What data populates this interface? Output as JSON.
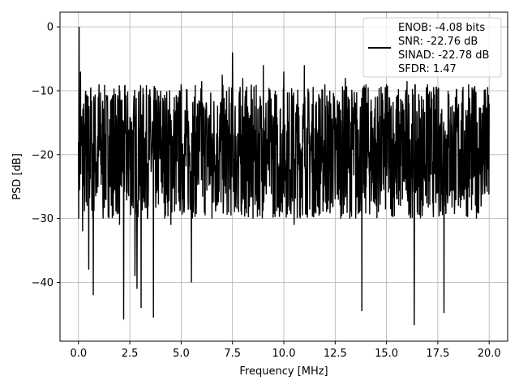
{
  "chart_data": {
    "type": "line",
    "title": "",
    "xlabel": "Frequency [MHz]",
    "ylabel": "PSD [dB]",
    "xlim": [
      -0.9,
      20.9
    ],
    "ylim": [
      -49.2,
      2.3
    ],
    "xticks": [
      0.0,
      2.5,
      5.0,
      7.5,
      10.0,
      12.5,
      15.0,
      17.5,
      20.0
    ],
    "xtick_labels": [
      "0.0",
      "2.5",
      "5.0",
      "7.5",
      "10.0",
      "12.5",
      "15.0",
      "17.5",
      "20.0"
    ],
    "yticks": [
      0,
      -10,
      -20,
      -30,
      -40
    ],
    "ytick_labels": [
      "0",
      "−10",
      "−20",
      "−30",
      "−40"
    ],
    "grid": true,
    "legend_position": "top-right",
    "series": [
      {
        "line_color": "#000000",
        "description": "dense noise-floor PSD spanning 0 to 20 MHz",
        "noise_floor_range_db": [
          -30,
          -9
        ],
        "x": [
          0.0,
          0.03,
          0.06,
          0.1,
          0.15,
          0.2,
          0.25,
          0.3,
          0.35,
          0.42,
          0.5,
          0.6,
          0.7,
          0.72,
          0.8,
          0.9,
          1.0,
          1.2,
          1.4,
          1.6,
          1.8,
          2.0,
          2.2,
          2.3,
          2.6,
          2.75,
          2.85,
          3.0,
          3.05,
          3.2,
          3.5,
          3.65,
          3.8,
          4.0,
          4.5,
          5.0,
          5.5,
          5.6,
          6.0,
          6.5,
          7.0,
          7.5,
          7.8,
          8.0,
          8.5,
          9.0,
          9.5,
          10.0,
          10.5,
          11.0,
          11.5,
          12.0,
          12.5,
          13.0,
          13.5,
          13.8,
          14.0,
          14.5,
          15.0,
          15.5,
          16.0,
          16.35,
          16.5,
          17.0,
          17.5,
          17.8,
          18.0,
          18.5,
          19.0,
          19.5,
          20.0
        ],
        "y": [
          -18.0,
          0.0,
          -22.0,
          -7.0,
          -14.0,
          -32.0,
          -12.0,
          -26.0,
          -10.0,
          -28.0,
          -38.0,
          -9.5,
          -30.0,
          -42.0,
          -12.0,
          -26.0,
          -9.0,
          -30.0,
          -11.0,
          -28.0,
          -10.5,
          -31.0,
          -45.8,
          -12.0,
          -28.0,
          -39.0,
          -41.0,
          -10.0,
          -44.0,
          -27.0,
          -11.0,
          -45.5,
          -26.0,
          -10.0,
          -31.0,
          -9.0,
          -40.0,
          -27.0,
          -8.5,
          -30.0,
          -7.5,
          -4.0,
          -29.0,
          -8.0,
          -30.0,
          -6.0,
          -28.0,
          -7.0,
          -31.0,
          -6.0,
          -29.0,
          -9.0,
          -27.0,
          -8.0,
          -30.0,
          -44.5,
          -9.0,
          -28.0,
          -9.0,
          -27.0,
          -8.5,
          -46.7,
          -29.0,
          -9.0,
          -26.0,
          -44.8,
          -10.0,
          -28.0,
          -9.0,
          -26.0,
          -12.0
        ]
      }
    ],
    "legend": {
      "entries": [
        "ENOB: -4.08 bits",
        "SNR: -22.76 dB",
        "SINAD: -22.78 dB",
        "SFDR: 1.47"
      ]
    }
  }
}
